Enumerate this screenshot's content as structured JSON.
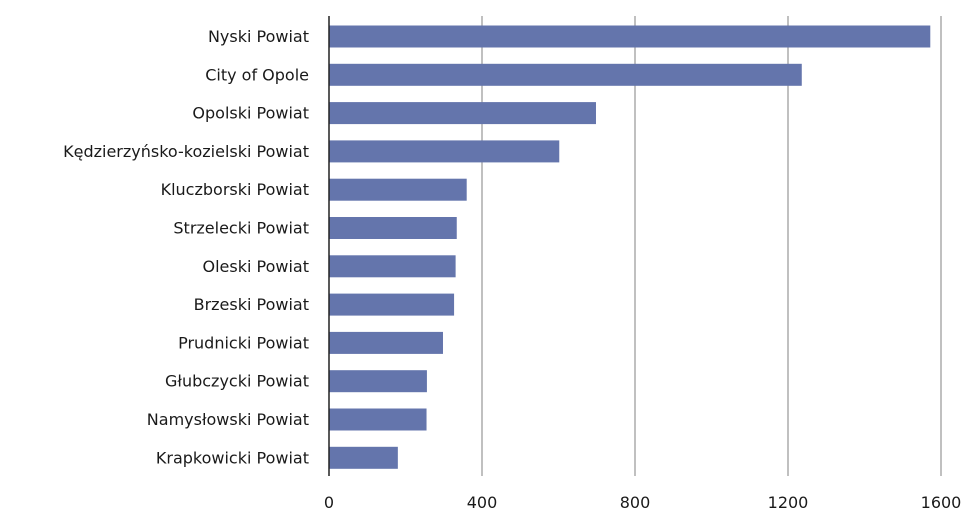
{
  "chart_data": {
    "type": "bar",
    "orientation": "horizontal",
    "categories": [
      "Nyski Powiat",
      "City of Opole",
      "Opolski Powiat",
      "Kędzierzyńsko-kozielski Powiat",
      "Kluczborski Powiat",
      "Strzelecki Powiat",
      "Oleski Powiat",
      "Brzeski Powiat",
      "Prudnicki Powiat",
      "Głubczycki Powiat",
      "Namysłowski Powiat",
      "Krapkowicki Powiat"
    ],
    "values": [
      1572,
      1236,
      698,
      602,
      360,
      334,
      331,
      327,
      298,
      256,
      255,
      180
    ],
    "xticks": [
      0,
      400,
      800,
      1200,
      1600
    ],
    "xtick_labels": [
      "0",
      "400",
      "800",
      "1200",
      "1600"
    ],
    "xlim": [
      0,
      1600
    ],
    "grid": "vertical",
    "bar_color": "#6475ac",
    "grid_color": "#c0c0c0"
  }
}
